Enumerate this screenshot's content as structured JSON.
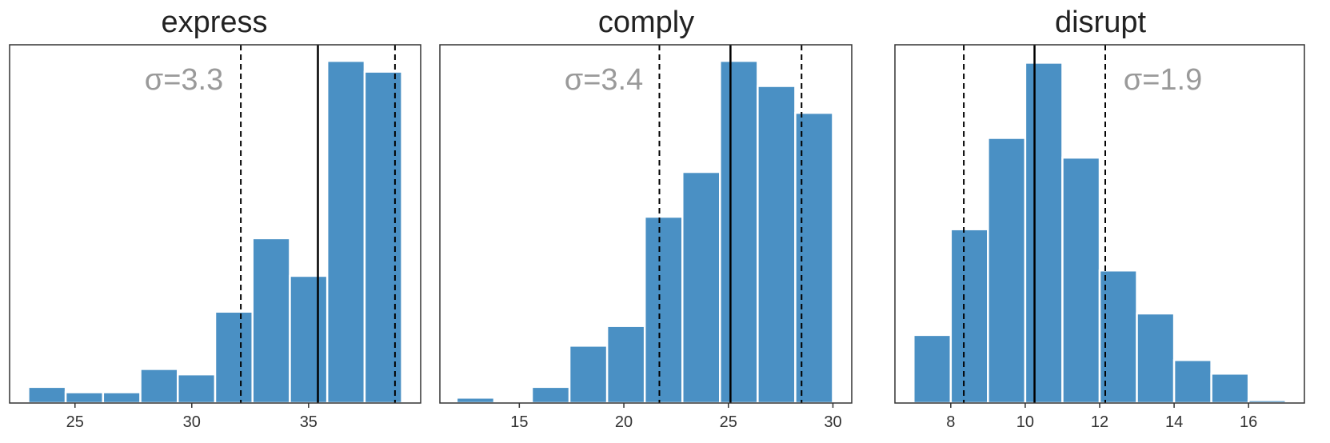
{
  "colors": {
    "bar": "#4a90c4",
    "bar_edge": "#ffffff",
    "mean_line": "#000000",
    "sd_line": "#000000",
    "sigma_text": "#9a9a9a"
  },
  "chart_data": [
    {
      "type": "bar",
      "title": "express",
      "xlim": [
        22.2,
        39.8
      ],
      "ylim": [
        0,
        1.0
      ],
      "xticks": [
        25,
        30,
        35
      ],
      "grid": false,
      "yaxis_ticks": false,
      "bins": [
        {
          "x0": 23.0,
          "x1": 24.6,
          "value": 0.045
        },
        {
          "x0": 24.6,
          "x1": 26.2,
          "value": 0.03
        },
        {
          "x0": 26.2,
          "x1": 27.8,
          "value": 0.03
        },
        {
          "x0": 27.8,
          "x1": 29.4,
          "value": 0.095
        },
        {
          "x0": 29.4,
          "x1": 31.0,
          "value": 0.08
        },
        {
          "x0": 31.0,
          "x1": 32.6,
          "value": 0.255
        },
        {
          "x0": 32.6,
          "x1": 34.2,
          "value": 0.46
        },
        {
          "x0": 34.2,
          "x1": 35.8,
          "value": 0.355
        },
        {
          "x0": 35.8,
          "x1": 37.4,
          "value": 0.955
        },
        {
          "x0": 37.4,
          "x1": 39.0,
          "value": 0.925
        }
      ],
      "mean": 35.4,
      "sd_lines": [
        32.1,
        38.7
      ],
      "sigma_label": "σ=3.3",
      "sigma_position": "upper-left"
    },
    {
      "type": "bar",
      "title": "comply",
      "xlim": [
        11.2,
        30.9
      ],
      "ylim": [
        0,
        1.0
      ],
      "xticks": [
        15,
        20,
        25,
        30
      ],
      "grid": false,
      "yaxis_ticks": false,
      "bins": [
        {
          "x0": 12.0,
          "x1": 13.8,
          "value": 0.015
        },
        {
          "x0": 13.8,
          "x1": 15.6,
          "value": 0.0
        },
        {
          "x0": 15.6,
          "x1": 17.4,
          "value": 0.045
        },
        {
          "x0": 17.4,
          "x1": 19.2,
          "value": 0.16
        },
        {
          "x0": 19.2,
          "x1": 21.0,
          "value": 0.215
        },
        {
          "x0": 21.0,
          "x1": 22.8,
          "value": 0.52
        },
        {
          "x0": 22.8,
          "x1": 24.6,
          "value": 0.645
        },
        {
          "x0": 24.6,
          "x1": 26.4,
          "value": 0.955
        },
        {
          "x0": 26.4,
          "x1": 28.2,
          "value": 0.885
        },
        {
          "x0": 28.2,
          "x1": 30.0,
          "value": 0.81
        }
      ],
      "mean": 25.1,
      "sd_lines": [
        21.7,
        28.5
      ],
      "sigma_label": "σ=3.4",
      "sigma_position": "upper-left"
    },
    {
      "type": "bar",
      "title": "disrupt",
      "xlim": [
        6.5,
        17.5
      ],
      "ylim": [
        0,
        1.0
      ],
      "xticks": [
        8,
        10,
        12,
        14,
        16
      ],
      "grid": false,
      "yaxis_ticks": false,
      "bins": [
        {
          "x0": 7.0,
          "x1": 8.0,
          "value": 0.19
        },
        {
          "x0": 8.0,
          "x1": 9.0,
          "value": 0.485
        },
        {
          "x0": 9.0,
          "x1": 10.0,
          "value": 0.74
        },
        {
          "x0": 10.0,
          "x1": 11.0,
          "value": 0.95
        },
        {
          "x0": 11.0,
          "x1": 12.0,
          "value": 0.685
        },
        {
          "x0": 12.0,
          "x1": 13.0,
          "value": 0.37
        },
        {
          "x0": 13.0,
          "x1": 14.0,
          "value": 0.25
        },
        {
          "x0": 14.0,
          "x1": 15.0,
          "value": 0.12
        },
        {
          "x0": 15.0,
          "x1": 16.0,
          "value": 0.082
        },
        {
          "x0": 16.0,
          "x1": 17.0,
          "value": 0.008
        }
      ],
      "mean": 10.25,
      "sd_lines": [
        8.35,
        12.15
      ],
      "sigma_label": "σ=1.9",
      "sigma_position": "upper-right"
    }
  ]
}
